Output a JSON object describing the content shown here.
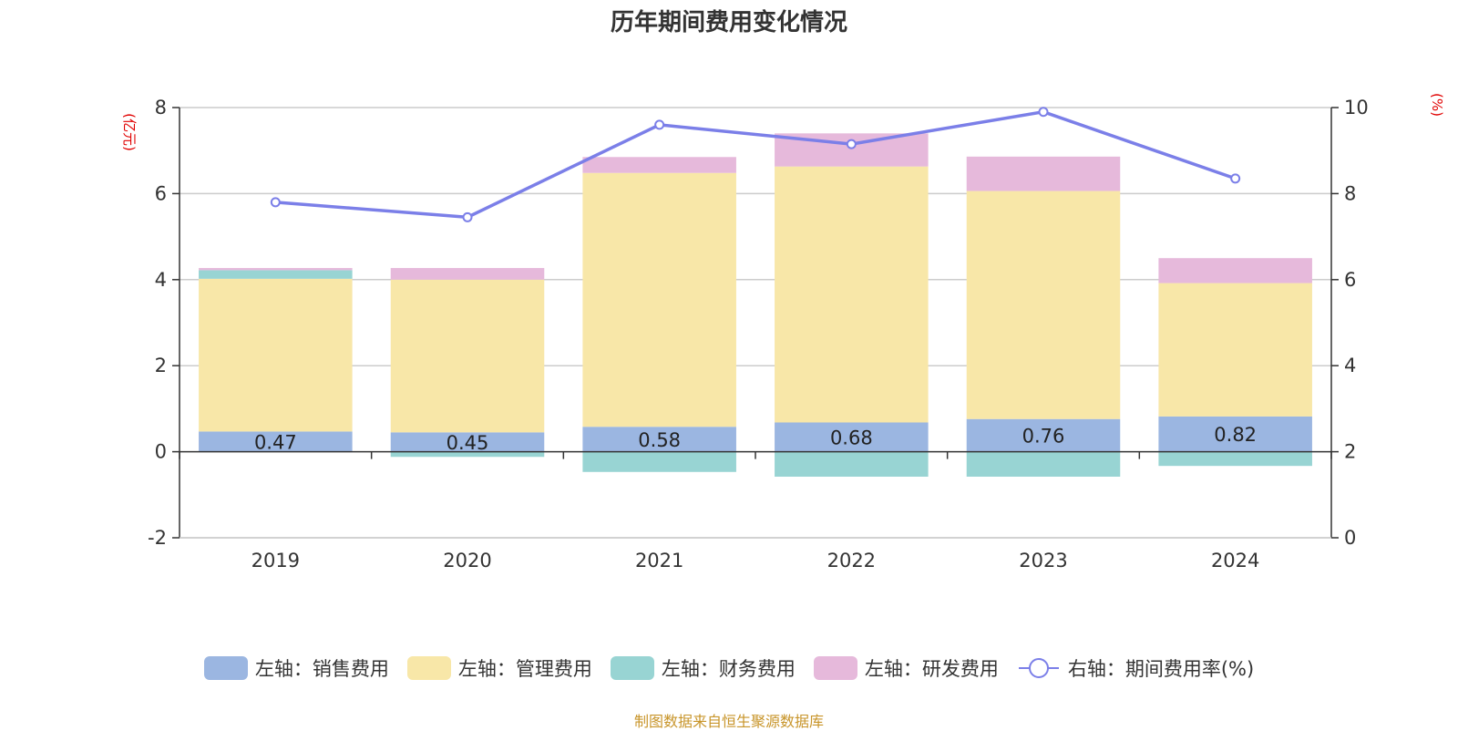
{
  "chart_data": {
    "type": "bar",
    "title": "历年期间费用变化情况",
    "categories": [
      "2019",
      "2020",
      "2021",
      "2022",
      "2023",
      "2024"
    ],
    "left_axis": {
      "unit": "(亿元)",
      "ylim": [
        -2,
        8
      ],
      "ticks": [
        "-2",
        "0",
        "2",
        "4",
        "6",
        "8"
      ]
    },
    "right_axis": {
      "unit": "(%)",
      "ylim": [
        0,
        10
      ],
      "ticks": [
        "0",
        "2",
        "4",
        "6",
        "8",
        "10"
      ]
    },
    "series": [
      {
        "name": "左轴：销售费用",
        "axis": "left",
        "stack": true,
        "color": "#9bb6e1",
        "values": [
          0.47,
          0.45,
          0.58,
          0.68,
          0.76,
          0.82
        ],
        "labels": [
          "0.47",
          "0.45",
          "0.58",
          "0.68",
          "0.76",
          "0.82"
        ]
      },
      {
        "name": "左轴：管理费用",
        "axis": "left",
        "stack": true,
        "color": "#f8e7a8",
        "values": [
          3.55,
          3.55,
          5.9,
          5.95,
          5.3,
          3.1
        ]
      },
      {
        "name": "左轴：财务费用",
        "axis": "left",
        "stack": true,
        "color": "#98d4d3",
        "values": [
          0.2,
          -0.12,
          -0.47,
          -0.58,
          -0.58,
          -0.33
        ]
      },
      {
        "name": "左轴：研发费用",
        "axis": "left",
        "stack": true,
        "color": "#e6b9db",
        "values": [
          0.05,
          0.27,
          0.37,
          0.77,
          0.8,
          0.58
        ]
      },
      {
        "name": "右轴：期间费用率(%)",
        "axis": "right",
        "type": "line",
        "color": "#7b7fe8",
        "values": [
          7.8,
          7.45,
          9.6,
          9.15,
          9.9,
          8.35
        ]
      }
    ],
    "source": "制图数据来自恒生聚源数据库"
  }
}
